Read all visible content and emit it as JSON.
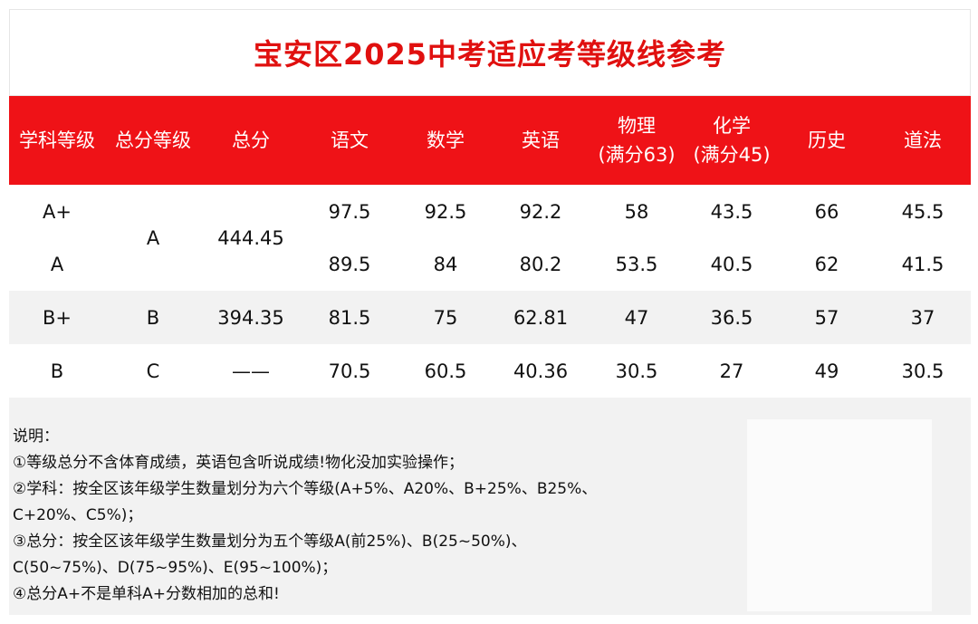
{
  "title": "宝安区2025中考适应考等级线参考",
  "header": {
    "subject_level": "学科等级",
    "total_level": "总分等级",
    "total": "总分",
    "chinese": "语文",
    "math": "数学",
    "english": "英语",
    "physics": "物理",
    "physics_note": "(满分63)",
    "chemistry": "化学",
    "chemistry_note": "(满分45)",
    "history": "历史",
    "law": "道法"
  },
  "rows": [
    {
      "subject_level": "A+",
      "chinese": "97.5",
      "math": "92.5",
      "english": "92.2",
      "physics": "58",
      "chemistry": "43.5",
      "history": "66",
      "law": "45.5"
    },
    {
      "subject_level": "A",
      "chinese": "89.5",
      "math": "84",
      "english": "80.2",
      "physics": "53.5",
      "chemistry": "40.5",
      "history": "62",
      "law": "41.5"
    },
    {
      "subject_level": "B+",
      "total_level": "B",
      "total": "394.35",
      "chinese": "81.5",
      "math": "75",
      "english": "62.81",
      "physics": "47",
      "chemistry": "36.5",
      "history": "57",
      "law": "37"
    },
    {
      "subject_level": "B",
      "total_level": "C",
      "total": "——",
      "chinese": "70.5",
      "math": "60.5",
      "english": "40.36",
      "physics": "30.5",
      "chemistry": "27",
      "history": "49",
      "law": "30.5"
    }
  ],
  "merged": {
    "total_level": "A",
    "total": "444.45"
  },
  "notes": [
    "说明：",
    "①等级总分不含体育成绩，英语包含听说成绩!物化没加实验操作；",
    "②学科：按全区该年级学生数量划分为六个等级(A+5%、A20%、B+25%、B25%、",
    "C+20%、C5%)；",
    "③总分：按全区该年级学生数量划分为五个等级A(前25%)、B(25~50%)、",
    "C(50~75%)、D(75~95%)、E(95~100%)；",
    "④总分A+不是单科A+分数相加的总和!"
  ]
}
